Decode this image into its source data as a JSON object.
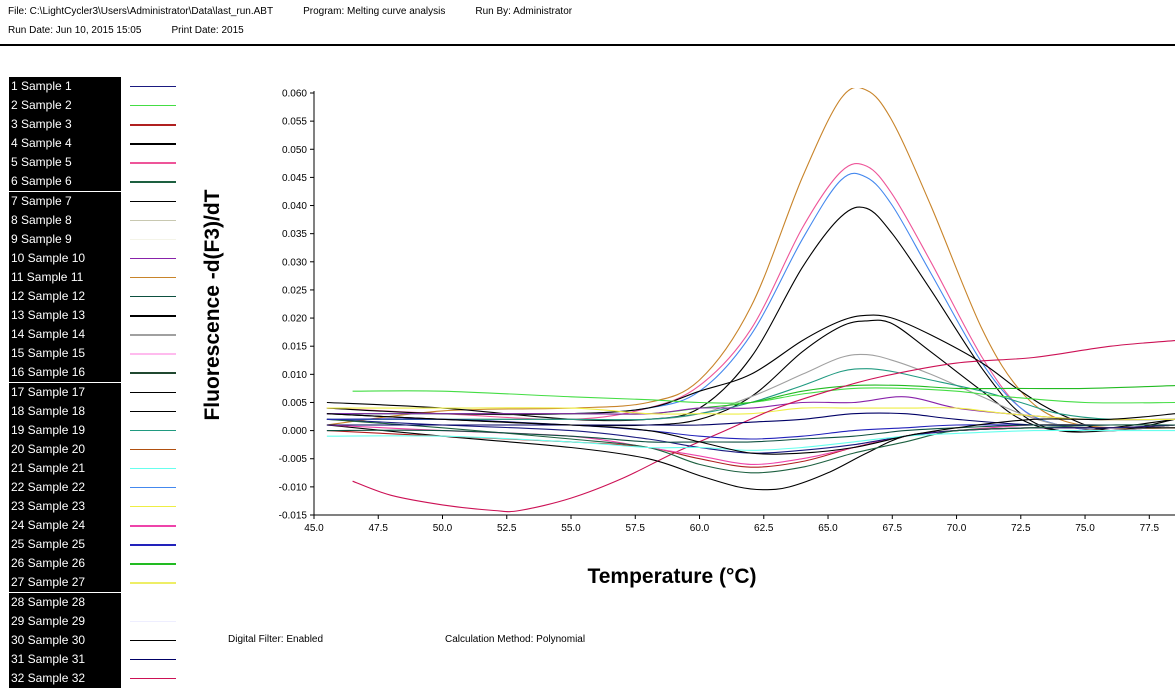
{
  "header": {
    "file": "File: C:\\LightCycler3\\Users\\Administrator\\Data\\last_run.ABT",
    "program": "Program: Melting curve analysis",
    "run_by": "Run By: Administrator",
    "run_date": "Run Date: Jun 10, 2015 15:05",
    "print_date": "Print Date: 2015"
  },
  "footer": {
    "digital_filter": "Digital Filter: Enabled",
    "calc_method": "Calculation Method: Polynomial"
  },
  "legend": [
    {
      "label": "1 Sample 1",
      "color": "#1a1a80"
    },
    {
      "label": "2 Sample 2",
      "color": "#44dd44"
    },
    {
      "label": "3 Sample 3",
      "color": "#b02020"
    },
    {
      "label": "4 Sample 4",
      "color": "#000000"
    },
    {
      "label": "5 Sample 5",
      "color": "#ee5599"
    },
    {
      "label": "6 Sample 6",
      "color": "#1d6040"
    },
    {
      "label": "7 Sample 7",
      "color": "#000000"
    },
    {
      "label": "8 Sample 8",
      "color": "#c8c8b0"
    },
    {
      "label": "9 Sample 9",
      "color": "#f4f4e8"
    },
    {
      "label": "10 Sample 10",
      "color": "#8822aa"
    },
    {
      "label": "11 Sample 11",
      "color": "#c8842a"
    },
    {
      "label": "12 Sample 12",
      "color": "#0d5040"
    },
    {
      "label": "13 Sample 13",
      "color": "#000000"
    },
    {
      "label": "14 Sample 14",
      "color": "#a0a0a0"
    },
    {
      "label": "15 Sample 15",
      "color": "#ffbbee"
    },
    {
      "label": "16 Sample 16",
      "color": "#204830"
    },
    {
      "label": "17 Sample 17",
      "color": "#000000"
    },
    {
      "label": "18 Sample 18",
      "color": "#000000"
    },
    {
      "label": "19 Sample 19",
      "color": "#209a80"
    },
    {
      "label": "20 Sample 20",
      "color": "#b05010"
    },
    {
      "label": "21 Sample 21",
      "color": "#66ffee"
    },
    {
      "label": "22 Sample 22",
      "color": "#4488ee"
    },
    {
      "label": "23 Sample 23",
      "color": "#eeee44"
    },
    {
      "label": "24 Sample 24",
      "color": "#ee44aa"
    },
    {
      "label": "25 Sample 25",
      "color": "#2222bb"
    },
    {
      "label": "26 Sample 26",
      "color": "#22bb22"
    },
    {
      "label": "27 Sample 27",
      "color": "#eeee66"
    },
    {
      "label": "28 Sample 28",
      "color": "#ffffff"
    },
    {
      "label": "29 Sample 29",
      "color": "#eeeeff"
    },
    {
      "label": "30 Sample 30",
      "color": "#000000"
    },
    {
      "label": "31 Sample 31",
      "color": "#000066"
    },
    {
      "label": "32 Sample 32",
      "color": "#cc1155"
    }
  ],
  "chart_data": {
    "type": "line",
    "title": "",
    "xlabel": "Temperature (°C)",
    "ylabel": "Fluorescence -d(F3)/dT",
    "xlim": [
      45.0,
      78.5
    ],
    "ylim": [
      -0.015,
      0.06
    ],
    "x_ticks": [
      "45.0",
      "47.5",
      "50.0",
      "52.5",
      "55.0",
      "57.5",
      "60.0",
      "62.5",
      "65.0",
      "67.5",
      "70.0",
      "72.5",
      "75.0",
      "77.5"
    ],
    "y_ticks": [
      "-0.015",
      "-0.010",
      "-0.005",
      "0.000",
      "0.005",
      "0.010",
      "0.015",
      "0.020",
      "0.025",
      "0.030",
      "0.035",
      "0.040",
      "0.045",
      "0.050",
      "0.055",
      "0.060"
    ],
    "series": [
      {
        "name": "Sample 11",
        "color": "#c8842a",
        "x": [
          45.5,
          50,
          55,
          58,
          60,
          62,
          64,
          65.5,
          66.5,
          67.5,
          69,
          71,
          72.5,
          74,
          76,
          78.5
        ],
        "y": [
          0.001,
          0.0035,
          0.004,
          0.005,
          0.009,
          0.022,
          0.045,
          0.059,
          0.0605,
          0.055,
          0.04,
          0.018,
          0.007,
          0.002,
          0.0005,
          0.0005
        ]
      },
      {
        "name": "Sample 5",
        "color": "#ee5599",
        "x": [
          45.5,
          50,
          55,
          58,
          60,
          62,
          64,
          65.5,
          66.5,
          67.5,
          69,
          71,
          72.5,
          74,
          76,
          78.5
        ],
        "y": [
          0.004,
          0.003,
          0.002,
          0.004,
          0.008,
          0.018,
          0.036,
          0.046,
          0.047,
          0.042,
          0.03,
          0.013,
          0.004,
          0.001,
          0.0,
          0.001
        ]
      },
      {
        "name": "Sample 22",
        "color": "#4488ee",
        "x": [
          45.5,
          50,
          55,
          58,
          60,
          62,
          64,
          65.5,
          66.5,
          67.5,
          69,
          71,
          72.5,
          74,
          76,
          78.5
        ],
        "y": [
          0.003,
          0.003,
          0.003,
          0.004,
          0.007,
          0.017,
          0.034,
          0.0445,
          0.045,
          0.04,
          0.028,
          0.012,
          0.004,
          0.001,
          0.0,
          0.001
        ]
      },
      {
        "name": "Sample 7",
        "color": "#000000",
        "x": [
          45.5,
          50,
          55,
          58,
          60,
          62,
          64,
          65.5,
          66.5,
          67.5,
          69,
          71,
          72.5,
          74,
          76,
          78.5
        ],
        "y": [
          0.005,
          0.004,
          0.002,
          0.002,
          0.004,
          0.013,
          0.029,
          0.038,
          0.0395,
          0.035,
          0.025,
          0.011,
          0.003,
          0.0,
          0.0,
          0.001
        ]
      },
      {
        "name": "Sample 4",
        "color": "#000000",
        "x": [
          45.5,
          50,
          55,
          58,
          60,
          62,
          64,
          65.5,
          66.5,
          67.5,
          69,
          71,
          72.5,
          74,
          76,
          78.5
        ],
        "y": [
          0.004,
          0.003,
          0.003,
          0.004,
          0.007,
          0.01,
          0.016,
          0.0195,
          0.0205,
          0.02,
          0.017,
          0.012,
          0.007,
          0.003,
          0.0,
          0.002
        ]
      },
      {
        "name": "Sample 13",
        "color": "#000000",
        "x": [
          45.5,
          50,
          55,
          58,
          60,
          62,
          64,
          65.5,
          66.5,
          67.5,
          69,
          71,
          72.5,
          74,
          76,
          78.5
        ],
        "y": [
          0.003,
          0.002,
          0.001,
          0.001,
          0.002,
          0.006,
          0.014,
          0.0185,
          0.0195,
          0.019,
          0.014,
          0.007,
          0.002,
          0.0,
          0.0005,
          0.002
        ]
      },
      {
        "name": "Sample 14",
        "color": "#a0a0a0",
        "x": [
          45.5,
          50,
          55,
          58,
          60,
          62,
          64,
          65.5,
          66.5,
          67.5,
          69,
          71,
          72.5,
          74,
          76,
          78.5
        ],
        "y": [
          0.002,
          0.002,
          0.002,
          0.002,
          0.003,
          0.006,
          0.01,
          0.013,
          0.0135,
          0.0125,
          0.01,
          0.006,
          0.003,
          0.001,
          0.0,
          0.001
        ]
      },
      {
        "name": "Sample 19",
        "color": "#209a80",
        "x": [
          45.5,
          50,
          55,
          58,
          60,
          62,
          64,
          65.5,
          66.5,
          67.5,
          69,
          71,
          72.5,
          74,
          76,
          78.5
        ],
        "y": [
          0.002,
          0.002,
          0.002,
          0.002,
          0.003,
          0.005,
          0.008,
          0.0105,
          0.011,
          0.0105,
          0.009,
          0.007,
          0.005,
          0.003,
          0.002,
          0.002
        ]
      },
      {
        "name": "Sample 2",
        "color": "#44dd44",
        "x": [
          46.5,
          50,
          55,
          58,
          60,
          62,
          64,
          66,
          68,
          70,
          72,
          75,
          78.5
        ],
        "y": [
          0.007,
          0.007,
          0.006,
          0.0055,
          0.005,
          0.005,
          0.0065,
          0.0075,
          0.0075,
          0.007,
          0.006,
          0.005,
          0.005
        ]
      },
      {
        "name": "Sample 26",
        "color": "#22bb22",
        "x": [
          46.5,
          50,
          55,
          58,
          60,
          62,
          64,
          66,
          68,
          70,
          72,
          75,
          78.5
        ],
        "y": [
          0.003,
          0.003,
          0.003,
          0.003,
          0.004,
          0.005,
          0.007,
          0.008,
          0.008,
          0.0075,
          0.0075,
          0.0075,
          0.008
        ]
      },
      {
        "name": "Sample 10",
        "color": "#8822aa",
        "x": [
          45.5,
          50,
          55,
          58,
          60,
          62,
          64,
          66,
          68,
          70,
          72,
          75,
          78.5
        ],
        "y": [
          0.003,
          0.003,
          0.003,
          0.003,
          0.004,
          0.004,
          0.005,
          0.005,
          0.006,
          0.004,
          0.003,
          0.002,
          0.002
        ]
      },
      {
        "name": "Sample 23",
        "color": "#eeee44",
        "x": [
          45.5,
          50,
          55,
          58,
          60,
          62,
          64,
          66,
          68,
          70,
          72,
          75,
          78.5
        ],
        "y": [
          0.004,
          0.004,
          0.004,
          0.003,
          0.003,
          0.003,
          0.004,
          0.004,
          0.004,
          0.004,
          0.003,
          0.002,
          0.002
        ]
      },
      {
        "name": "Sample 32",
        "color": "#cc1155",
        "x": [
          46.5,
          48,
          50,
          52,
          53,
          55,
          57,
          59,
          61,
          63,
          65,
          67,
          70,
          73,
          76,
          78.5
        ],
        "y": [
          -0.009,
          -0.0115,
          -0.0132,
          -0.0142,
          -0.0142,
          -0.012,
          -0.0085,
          -0.004,
          0.0,
          0.004,
          0.007,
          0.0095,
          0.012,
          0.013,
          0.015,
          0.016
        ]
      },
      {
        "name": "Sample 17",
        "color": "#000000",
        "x": [
          45.5,
          50,
          55,
          58,
          60,
          61.5,
          62.5,
          63.5,
          65,
          66.5,
          68,
          70,
          73,
          76,
          78.5
        ],
        "y": [
          0.001,
          -0.001,
          -0.003,
          -0.005,
          -0.008,
          -0.01,
          -0.0105,
          -0.01,
          -0.0075,
          -0.004,
          -0.001,
          0.0,
          0.0005,
          0.0005,
          0.0005
        ]
      },
      {
        "name": "Sample 3",
        "color": "#b02020",
        "x": [
          45.5,
          50,
          55,
          58,
          60,
          62,
          64,
          66,
          68,
          70,
          73,
          76,
          78.5
        ],
        "y": [
          0.0,
          -0.001,
          -0.002,
          -0.003,
          -0.005,
          -0.0065,
          -0.0055,
          -0.003,
          -0.001,
          0.0,
          0.0005,
          0.0005,
          0.001
        ]
      },
      {
        "name": "Sample 24",
        "color": "#ee44aa",
        "x": [
          45.5,
          50,
          55,
          58,
          60,
          62,
          64,
          66,
          68,
          70,
          73,
          76,
          78.5
        ],
        "y": [
          0.001,
          0.0,
          -0.001,
          -0.003,
          -0.0045,
          -0.006,
          -0.005,
          -0.003,
          -0.001,
          0.0,
          0.001,
          0.001,
          0.001
        ]
      },
      {
        "name": "Sample 1",
        "color": "#1a1a80",
        "x": [
          45.5,
          50,
          55,
          58,
          60,
          62,
          64,
          66,
          68,
          70,
          73,
          76,
          78.5
        ],
        "y": [
          0.002,
          0.001,
          0.0,
          -0.0015,
          -0.003,
          -0.004,
          -0.0035,
          -0.0025,
          -0.001,
          0.0,
          0.0005,
          0.0005,
          0.001
        ]
      },
      {
        "name": "Sample 6",
        "color": "#1d6040",
        "x": [
          45.5,
          50,
          55,
          58,
          60,
          62,
          64,
          66,
          68,
          70,
          73,
          76,
          78.5
        ],
        "y": [
          0.002,
          0.0005,
          -0.0015,
          -0.003,
          -0.006,
          -0.0075,
          -0.0065,
          -0.004,
          -0.002,
          0.0,
          0.0005,
          0.001,
          0.001
        ]
      },
      {
        "name": "Sample 25",
        "color": "#2222bb",
        "x": [
          45.5,
          50,
          55,
          58,
          60,
          62,
          64,
          66,
          68,
          70,
          73,
          76,
          78.5
        ],
        "y": [
          0.002,
          0.002,
          0.001,
          0.0,
          -0.001,
          -0.0015,
          -0.001,
          0.0,
          0.0005,
          0.001,
          0.001,
          0.001,
          0.001
        ]
      },
      {
        "name": "Sample 31",
        "color": "#000066",
        "x": [
          45.5,
          50,
          55,
          58,
          60,
          62,
          64,
          66,
          68,
          70,
          73,
          76,
          78.5
        ],
        "y": [
          0.001,
          0.001,
          0.001,
          0.001,
          0.001,
          0.0015,
          0.002,
          0.003,
          0.003,
          0.002,
          0.001,
          0.001,
          0.001
        ]
      },
      {
        "name": "Sample 12",
        "color": "#0d5040",
        "x": [
          45.5,
          50,
          55,
          58,
          60,
          62,
          64,
          66,
          68,
          70,
          73,
          76,
          78.5
        ],
        "y": [
          0.0,
          0.0,
          -0.001,
          -0.002,
          -0.002,
          -0.002,
          -0.0015,
          -0.001,
          0.0,
          0.0005,
          0.001,
          0.001,
          0.001
        ]
      },
      {
        "name": "Sample 21",
        "color": "#66ffee",
        "x": [
          45.5,
          50,
          55,
          58,
          60,
          62,
          64,
          66,
          68,
          70,
          73,
          76,
          78.5
        ],
        "y": [
          -0.001,
          -0.001,
          -0.002,
          -0.003,
          -0.003,
          -0.0035,
          -0.003,
          -0.002,
          -0.001,
          -0.0005,
          0.0,
          0.0,
          0.0
        ]
      },
      {
        "name": "Sample 30",
        "color": "#000000",
        "x": [
          45.5,
          50,
          55,
          58,
          60,
          62,
          64,
          66,
          68,
          70,
          73,
          76,
          78.5
        ],
        "y": [
          0.003,
          0.002,
          0.001,
          0.0,
          -0.002,
          -0.004,
          -0.004,
          -0.003,
          -0.001,
          0.0005,
          0.002,
          0.002,
          0.003
        ]
      }
    ]
  }
}
